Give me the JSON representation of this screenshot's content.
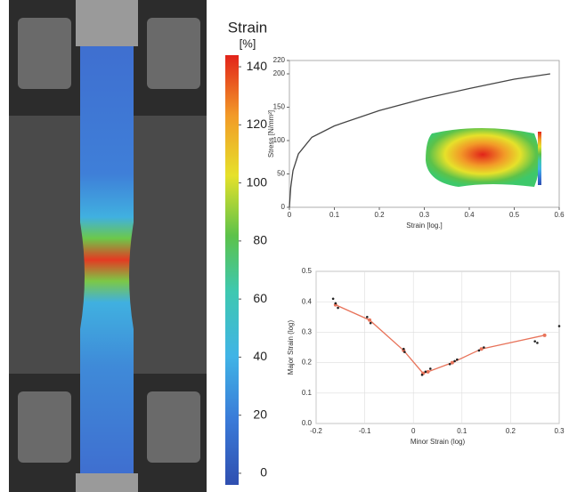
{
  "chart_data": [
    {
      "type": "colorbar",
      "title": "Strain",
      "unit": "[%]",
      "ylim": [
        -4,
        144
      ],
      "yticks": [
        0,
        20,
        40,
        60,
        80,
        100,
        120,
        140
      ]
    },
    {
      "type": "line",
      "xlabel": "Strain [log.]",
      "ylabel": "Stress [N/mm²]",
      "grid": false,
      "xlim": [
        0,
        0.6
      ],
      "xticks": [
        0,
        0.1,
        0.2,
        0.3,
        0.4,
        0.5,
        0.6
      ],
      "ylim": [
        0,
        220
      ],
      "yticks": [
        0,
        50,
        100,
        150,
        200,
        220
      ],
      "series": [
        {
          "color": "#444444",
          "mode": "line",
          "x": [
            0,
            0.003,
            0.008,
            0.02,
            0.05,
            0.1,
            0.2,
            0.3,
            0.4,
            0.5,
            0.58
          ],
          "values": [
            0,
            30,
            55,
            80,
            105,
            122,
            145,
            163,
            178,
            192,
            200
          ]
        }
      ]
    },
    {
      "type": "line",
      "xlabel": "Minor Strain (log)",
      "ylabel": "Major Strain (log)",
      "grid": true,
      "xlim": [
        -0.2,
        0.3
      ],
      "xticks": [
        -0.2,
        -0.1,
        0,
        0.1,
        0.2,
        0.3
      ],
      "ylim": [
        0,
        0.5
      ],
      "yticks": [
        {
          "value": 0,
          "label": "0.0"
        },
        0.1,
        0.2,
        0.3,
        0.4,
        0.5
      ],
      "series": [
        {
          "color": "#e8735a",
          "mode": "line",
          "x": [
            -0.16,
            -0.09,
            -0.02,
            0.02,
            0.03,
            0.08,
            0.14,
            0.27
          ],
          "values": [
            0.39,
            0.34,
            0.24,
            0.165,
            0.17,
            0.2,
            0.245,
            0.29
          ]
        },
        {
          "color": "#222222",
          "mode": "markers",
          "x": [
            -0.165,
            -0.16,
            -0.155,
            -0.095,
            -0.088,
            -0.02,
            -0.018,
            0.018,
            0.025,
            0.035,
            0.075,
            0.085,
            0.09,
            0.135,
            0.145,
            0.25,
            0.255,
            0.3
          ],
          "values": [
            0.41,
            0.395,
            0.38,
            0.35,
            0.33,
            0.245,
            0.235,
            0.16,
            0.17,
            0.18,
            0.195,
            0.205,
            0.21,
            0.24,
            0.25,
            0.27,
            0.265,
            0.32
          ]
        }
      ]
    }
  ]
}
